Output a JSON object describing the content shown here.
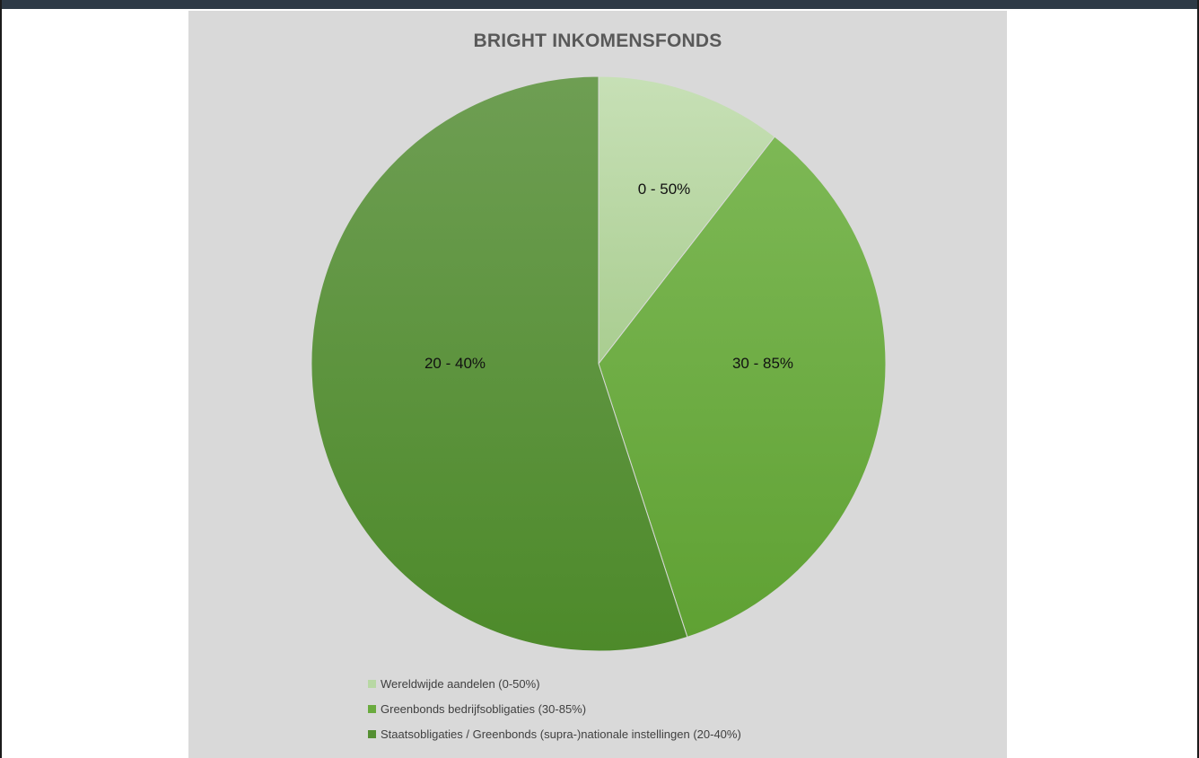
{
  "chart_data": {
    "type": "pie",
    "title": "BRIGHT INKOMENSFONDS",
    "slices": [
      {
        "label": "0 - 50%",
        "legend": "Wereldwijde aandelen (0-50%)",
        "value": 10.5,
        "color": "#b8d8a4"
      },
      {
        "label": "30 - 85%",
        "legend": "Greenbonds bedrijfsobligaties (30-85%)",
        "value": 34.5,
        "color": "#6aab3e"
      },
      {
        "label": "20 - 40%",
        "legend": "Staatsobligaties / Greenbonds (supra-)nationale instellingen  (20-40%)",
        "value": 55,
        "color": "#558f33"
      }
    ],
    "legend_position": "bottom-left"
  },
  "colors": {
    "panel_background": "#d9d9d9",
    "title": "#595959",
    "topbar": "#2e3a46"
  }
}
